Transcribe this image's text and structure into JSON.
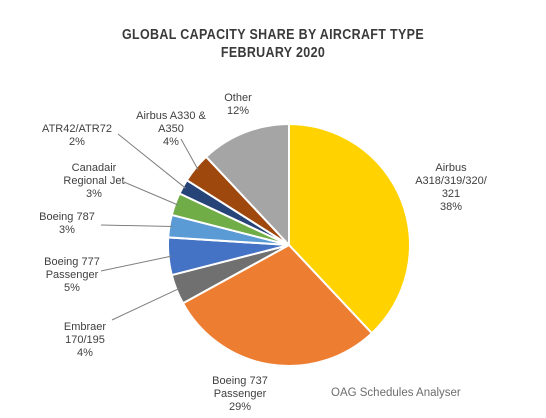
{
  "chart_data": {
    "type": "pie",
    "title": "GLOBAL CAPACITY SHARE BY AIRCRAFT TYPE",
    "subtitle": "FEBRUARY 2020",
    "source": "OAG Schedules Analyser",
    "slices": [
      {
        "label_lines": [
          "Airbus",
          "A318/319/320/",
          "321"
        ],
        "value": 38,
        "value_text": "38%",
        "color": "#FFD200"
      },
      {
        "label_lines": [
          "Boeing 737",
          "Passenger"
        ],
        "value": 29,
        "value_text": "29%",
        "color": "#ED7D31"
      },
      {
        "label_lines": [
          "Embraer",
          "170/195"
        ],
        "value": 4,
        "value_text": "4%",
        "color": "#707070"
      },
      {
        "label_lines": [
          "Boeing 777",
          "Passenger"
        ],
        "value": 5,
        "value_text": "5%",
        "color": "#4472C4"
      },
      {
        "label_lines": [
          "Boeing 787"
        ],
        "value": 3,
        "value_text": "3%",
        "color": "#5B9BD5"
      },
      {
        "label_lines": [
          "Canadair",
          "Regional Jet"
        ],
        "value": 3,
        "value_text": "3%",
        "color": "#70AD47"
      },
      {
        "label_lines": [
          "ATR42/ATR72"
        ],
        "value": 2,
        "value_text": "2%",
        "color": "#264478"
      },
      {
        "label_lines": [
          "Airbus A330 &",
          "A350"
        ],
        "value": 4,
        "value_text": "4%",
        "color": "#9E480E"
      },
      {
        "label_lines": [
          "Other"
        ],
        "value": 12,
        "value_text": "12%",
        "color": "#A5A5A5"
      }
    ]
  }
}
